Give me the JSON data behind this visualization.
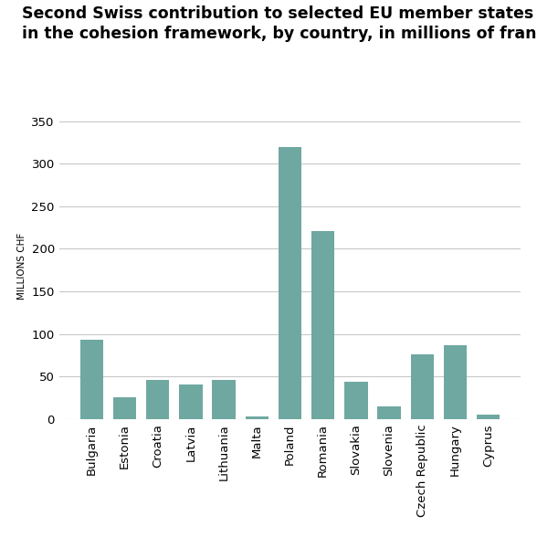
{
  "title_line1": "Second Swiss contribution to selected EU member states",
  "title_line2": "in the cohesion framework, by country, in millions of francs",
  "ylabel": "MILLIONS CHF",
  "categories": [
    "Bulgaria",
    "Estonia",
    "Croatia",
    "Latvia",
    "Lithuania",
    "Malta",
    "Poland",
    "Romania",
    "Slovakia",
    "Slovenia",
    "Czech Republic",
    "Hungary",
    "Cyprus"
  ],
  "values": [
    93,
    25,
    46,
    40,
    46,
    3,
    320,
    221,
    44,
    15,
    76,
    87,
    5
  ],
  "bar_color": "#6fa8a0",
  "ylim": [
    0,
    360
  ],
  "yticks": [
    0,
    50,
    100,
    150,
    200,
    250,
    300,
    350
  ],
  "grid_color": "#c8c8c8",
  "background_color": "#ffffff",
  "title_fontsize": 12.5,
  "tick_label_fontsize": 9.5,
  "ylabel_fontsize": 7.5
}
